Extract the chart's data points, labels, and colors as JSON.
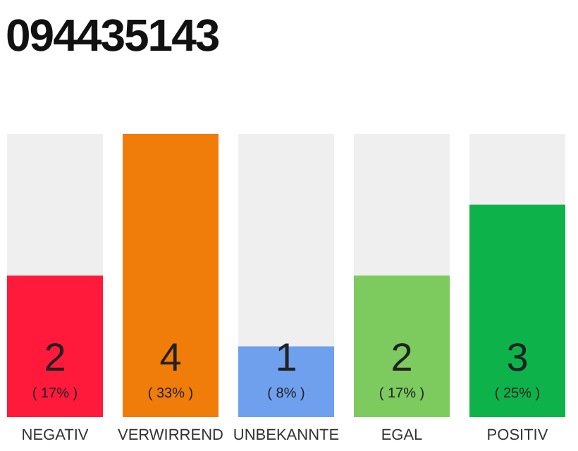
{
  "chart_data": {
    "type": "bar",
    "title": "094435143",
    "categories": [
      "NEGATIV",
      "VERWIRREND",
      "UNBEKANNTE",
      "EGAL",
      "POSITIV"
    ],
    "values": [
      2,
      4,
      1,
      2,
      3
    ],
    "colors": [
      "#ff1a3c",
      "#f07c0a",
      "#6ea0ee",
      "#7dcb5f",
      "#0db34a"
    ],
    "data_labels": true,
    "annotations": [
      "( 17% )",
      "( 33% )",
      "( 8% )",
      "( 17% )",
      "( 25% )"
    ]
  }
}
